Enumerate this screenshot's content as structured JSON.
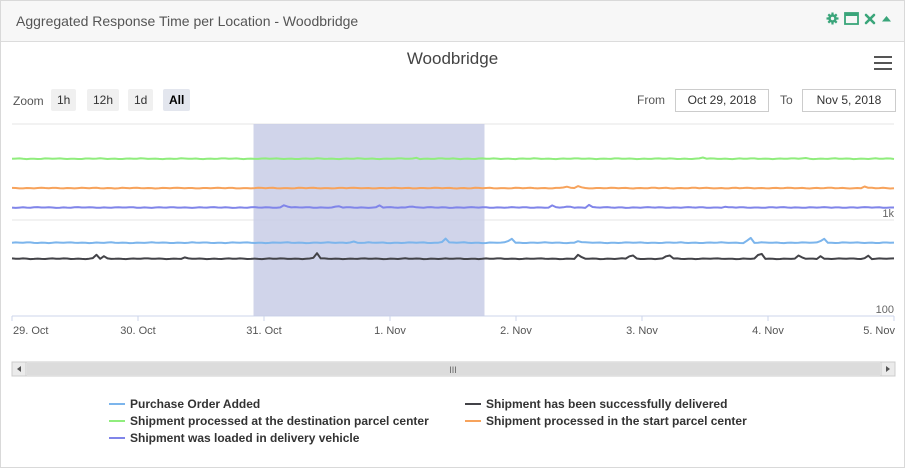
{
  "panel": {
    "title": "Aggregated Response Time per Location - Woodbridge",
    "icons": [
      "gear-icon",
      "window-icon",
      "close-icon",
      "collapse-icon"
    ]
  },
  "chart_data": {
    "type": "line",
    "title": "Woodbridge",
    "xlabel": "",
    "ylabel": "",
    "y_scale": "log",
    "ylim": [
      100,
      10000
    ],
    "y_ticks": [
      {
        "value": 100,
        "label": "100"
      },
      {
        "value": 1000,
        "label": "1k"
      }
    ],
    "x_range": [
      "2018-10-29",
      "2018-11-05"
    ],
    "x_ticks": [
      "29. Oct",
      "30. Oct",
      "31. Oct",
      "1. Nov",
      "2. Nov",
      "3. Nov",
      "4. Nov",
      "5. Nov"
    ],
    "navigator_selection": [
      "2018-10-30T22:00",
      "2018-11-01T18:00"
    ],
    "legend_position": "bottom",
    "grid": true,
    "series": [
      {
        "name": "Purchase Order Added",
        "color": "#7cb5ec",
        "baseline": 580,
        "spikes": [
          [
            "2018-11-01T10:30",
            650
          ],
          [
            "2018-11-01T23:00",
            660
          ],
          [
            "2018-11-03T20:30",
            680
          ],
          [
            "2018-11-04T10:30",
            660
          ],
          [
            "2018-11-02T12:00",
            610
          ],
          [
            "2018-10-31T17:00",
            600
          ]
        ]
      },
      {
        "name": "Shipment has been successfully delivered",
        "color": "#434348",
        "baseline": 395,
        "spikes": [
          [
            "2018-10-29T16:00",
            440
          ],
          [
            "2018-10-29T17:30",
            420
          ],
          [
            "2018-10-31T10:00",
            460
          ],
          [
            "2018-11-02T12:00",
            450
          ],
          [
            "2018-11-02T22:00",
            450
          ],
          [
            "2018-11-03T05:00",
            450
          ],
          [
            "2018-11-03T22:30",
            480
          ],
          [
            "2018-11-04T06:00",
            440
          ],
          [
            "2018-11-04T10:00",
            420
          ],
          [
            "2018-11-04T19:00",
            430
          ],
          [
            "2018-10-30T09:00",
            410
          ]
        ]
      },
      {
        "name": "Shipment processed at the destination parcel center",
        "color": "#90ed7d",
        "baseline": 4350,
        "spikes": [
          [
            "2018-11-01T05:00",
            4450
          ],
          [
            "2018-11-03T11:30",
            4500
          ],
          [
            "2018-11-04T07:00",
            4450
          ]
        ]
      },
      {
        "name": "Shipment processed in the start parcel center",
        "color": "#f7a35c",
        "baseline": 2150,
        "spikes": [
          [
            "2018-11-02T09:30",
            2250
          ],
          [
            "2018-11-02T12:00",
            2300
          ],
          [
            "2018-11-04T18:30",
            2250
          ]
        ]
      },
      {
        "name": "Shipment was loaded in delivery vehicle",
        "color": "#8085e9",
        "baseline": 1350,
        "spikes": [
          [
            "2018-10-31T04:00",
            1450
          ],
          [
            "2018-10-31T14:00",
            1420
          ],
          [
            "2018-10-31T22:00",
            1420
          ],
          [
            "2018-11-01T04:00",
            1400
          ],
          [
            "2018-11-02T07:00",
            1430
          ],
          [
            "2018-11-02T10:00",
            1400
          ],
          [
            "2018-11-02T14:00",
            1450
          ],
          [
            "2018-11-03T16:00",
            1380
          ]
        ]
      }
    ]
  },
  "zoom": {
    "label": "Zoom",
    "buttons": [
      {
        "label": "1h",
        "active": false
      },
      {
        "label": "12h",
        "active": false
      },
      {
        "label": "1d",
        "active": false
      },
      {
        "label": "All",
        "active": true
      }
    ]
  },
  "range": {
    "from_label": "From",
    "from_value": "Oct 29, 2018",
    "to_label": "To",
    "to_value": "Nov 5, 2018"
  },
  "scrollbar": {
    "grip": "III"
  }
}
